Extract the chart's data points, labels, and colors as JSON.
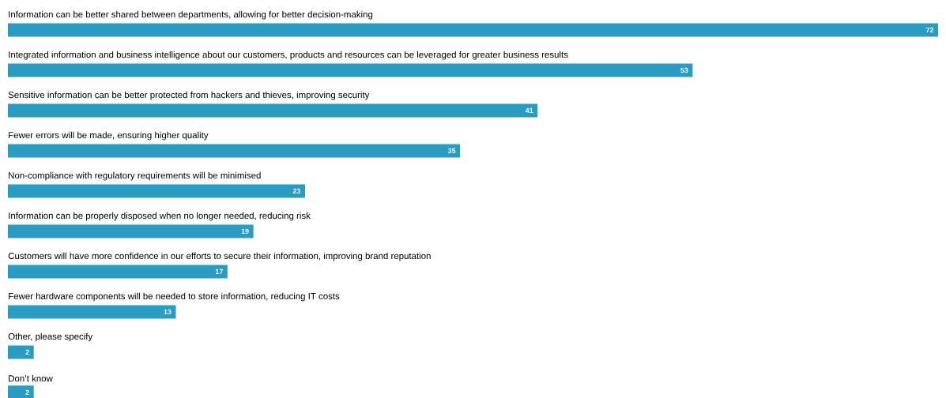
{
  "chart_data": {
    "type": "bar",
    "orientation": "horizontal",
    "categories": [
      "Information can be better shared between departments, allowing for better decision-making",
      "Integrated information and business intelligence about our customers, products and resources can be leveraged for greater business results",
      "Sensitive information can be better protected from hackers and thieves, improving security",
      "Fewer errors will be made, ensuring higher quality",
      "Non-compliance with regulatory requirements will be minimised",
      "Information can be properly disposed when no longer needed, reducing risk",
      "Customers will have more confidence in our efforts to secure their information, improving brand reputation",
      "Fewer hardware components will be needed to store information, reducing IT costs",
      "Other, please specify",
      "Don’t know"
    ],
    "values": [
      72,
      53,
      41,
      35,
      23,
      19,
      17,
      13,
      2,
      2
    ],
    "color": "#2a9bc1",
    "data_labels": true,
    "tick_labels": "y"
  }
}
